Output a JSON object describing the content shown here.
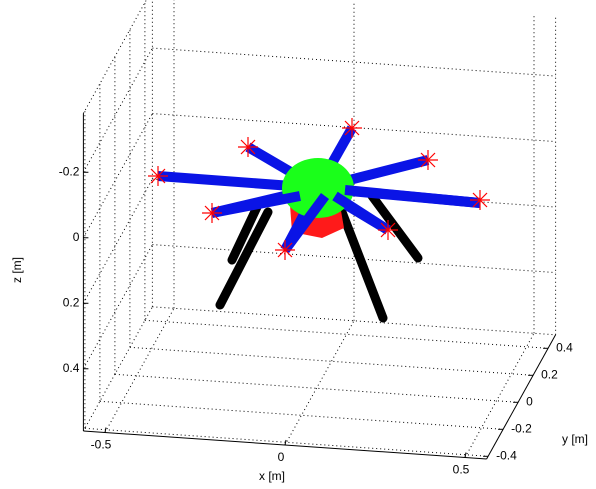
{
  "chart_data": {
    "type": "3d",
    "xlabel": "x [m]",
    "ylabel": "y [m]",
    "zlabel": "z [m]",
    "xlim": [
      -0.56,
      0.56
    ],
    "ylim": [
      -0.42,
      0.5
    ],
    "zlim": [
      -0.38,
      0.59
    ],
    "zreversed": true,
    "xticks": [
      -0.5,
      0,
      0.5
    ],
    "yticks": [
      -0.4,
      -0.2,
      0,
      0.2,
      0.4
    ],
    "zticks": [
      -0.2,
      0,
      0.2,
      0.4
    ],
    "grid": true
  }
}
